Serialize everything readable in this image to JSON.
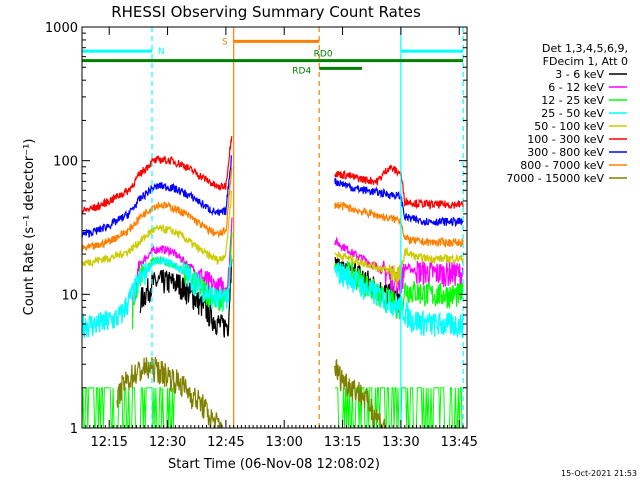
{
  "chart_data": {
    "type": "line",
    "title": "RHESSI Observing Summary Count Rates",
    "xlabel": "Start Time (06-Nov-08 12:08:02)",
    "ylabel": "Count Rate (s⁻¹ detector⁻¹)",
    "y_scale": "log",
    "ylim": [
      1,
      1000
    ],
    "xlim_minutes": [
      0,
      99
    ],
    "x_ticks": [
      {
        "label": "12:15",
        "t": 7
      },
      {
        "label": "12:30",
        "t": 22
      },
      {
        "label": "12:45",
        "t": 37
      },
      {
        "label": "13:00",
        "t": 52
      },
      {
        "label": "13:15",
        "t": 67
      },
      {
        "label": "13:30",
        "t": 82
      },
      {
        "label": "13:45",
        "t": 97
      }
    ],
    "y_ticks": [
      {
        "label": "1",
        "v": 1
      },
      {
        "label": "10",
        "v": 10
      },
      {
        "label": "100",
        "v": 100
      },
      {
        "label": "1000",
        "v": 1000
      }
    ],
    "legend": {
      "placement": "right",
      "header": [
        "Det 1,3,4,5,6,9,",
        "FDecim 1, Att 0"
      ],
      "entries": [
        {
          "label": "3 - 6 keV",
          "color": "#000000"
        },
        {
          "label": "6 - 12 keV",
          "color": "#ff00ff"
        },
        {
          "label": "12 - 25 keV",
          "color": "#00ff00"
        },
        {
          "label": "25 - 50 keV",
          "color": "#00ffff"
        },
        {
          "label": "50 - 100 keV",
          "color": "#cccc00"
        },
        {
          "label": "100 - 300 keV",
          "color": "#ff0000"
        },
        {
          "label": "300 - 800 keV",
          "color": "#0000ff"
        },
        {
          "label": "800 - 7000 keV",
          "color": "#ff8000"
        },
        {
          "label": "7000 - 15000 keV",
          "color": "#808000"
        }
      ]
    },
    "flags": [
      {
        "label": "N",
        "color": "#00ffff",
        "start": 0,
        "end": 18,
        "level": 660
      },
      {
        "label": "N",
        "color": "#00ffff",
        "start": 82,
        "end": 98,
        "level": 660
      },
      {
        "label": "S",
        "color": "#ff8000",
        "start": 39,
        "end": 61,
        "level": 780
      },
      {
        "label": "RD0",
        "color": "#008000",
        "start": 0,
        "end": 98,
        "level": 560
      },
      {
        "label": "RD4",
        "color": "#008000",
        "start": 61,
        "end": 72,
        "level": 490
      }
    ],
    "event_lines": [
      {
        "color": "#00ffff",
        "t": 18,
        "style": "dashed"
      },
      {
        "color": "#00ffff",
        "t": 82,
        "style": "solid"
      },
      {
        "color": "#00ffff",
        "t": 98,
        "style": "dashed"
      },
      {
        "color": "#ff8000",
        "t": 39,
        "style": "solid"
      },
      {
        "color": "#ff8000",
        "t": 61,
        "style": "dashed"
      }
    ],
    "gap_minutes": [
      39,
      65
    ],
    "series": [
      {
        "name": "3 - 6 keV",
        "color": "#000000",
        "t": [
          15,
          18,
          20,
          22,
          25,
          28,
          31,
          34,
          36,
          37.6,
          38.6
        ],
        "v": [
          9,
          12,
          12.5,
          12.5,
          12,
          10,
          8.2,
          6.5,
          5.8,
          6,
          22
        ],
        "t2": [
          65,
          68,
          70,
          73,
          76,
          79,
          82
        ],
        "v2": [
          18,
          16,
          15,
          13,
          11,
          10,
          9
        ]
      },
      {
        "name": "6 - 12 keV",
        "color": "#ff00ff",
        "t": [
          13,
          15,
          18,
          20,
          23,
          26,
          29,
          32,
          35,
          37.6,
          38.6
        ],
        "v": [
          8.5,
          17,
          21,
          22,
          21,
          18,
          15,
          12.5,
          11,
          12,
          40
        ],
        "t2": [
          65,
          68,
          70,
          73,
          76,
          79,
          82,
          83,
          86,
          90,
          94,
          98
        ],
        "v2": [
          25,
          22,
          20,
          18,
          16,
          14,
          12,
          16,
          15,
          14.5,
          14.5,
          14.5
        ]
      },
      {
        "name": "12 - 25 keV",
        "color": "#00ff00",
        "t": [
          13,
          15,
          18,
          20,
          23,
          26,
          29,
          32,
          35,
          37.6,
          38.6
        ],
        "v": [
          7,
          14,
          17.5,
          18,
          17,
          15,
          12.5,
          10.5,
          9,
          9.5,
          30
        ],
        "t2": [
          65,
          68,
          70,
          73,
          76,
          79,
          82,
          83,
          86,
          90,
          94,
          98
        ],
        "v2": [
          16,
          15,
          14,
          12,
          10,
          9,
          8,
          11,
          10.5,
          10,
          10,
          10
        ]
      },
      {
        "name": "25 - 50 keV",
        "color": "#00ffff",
        "t": [
          0,
          4,
          8,
          10,
          12,
          15,
          18,
          20,
          23,
          26,
          29,
          32,
          35,
          37.6,
          38.6
        ],
        "v": [
          6,
          6,
          6.5,
          7,
          9,
          13,
          17,
          18,
          17,
          15,
          12.5,
          10.5,
          9,
          10,
          20
        ],
        "t2": [
          65,
          68,
          70,
          73,
          76,
          79,
          82,
          85,
          90,
          94,
          98
        ],
        "v2": [
          15,
          14,
          13,
          11,
          10,
          9,
          8,
          6.5,
          6,
          6,
          6
        ]
      },
      {
        "name": "50 - 100 keV",
        "color": "#cccc00",
        "t": [
          0,
          4,
          8,
          12,
          15,
          18,
          20,
          23,
          26,
          29,
          32,
          35,
          37,
          38.6
        ],
        "v": [
          17,
          18,
          19,
          21,
          25,
          30,
          31,
          30,
          27,
          23,
          20,
          18,
          20,
          65
        ],
        "t2": [
          65,
          68,
          70,
          73,
          76,
          79,
          82,
          83,
          86,
          90,
          94,
          98
        ],
        "v2": [
          20,
          19,
          18,
          17,
          16,
          15,
          14,
          21,
          19,
          18.5,
          18.5,
          18.5
        ]
      },
      {
        "name": "100 - 300 keV",
        "color": "#ff0000",
        "t": [
          0,
          4,
          8,
          12,
          15,
          18,
          20,
          23,
          26,
          29,
          32,
          35,
          37,
          38.6
        ],
        "v": [
          42,
          45,
          52,
          60,
          80,
          98,
          102,
          100,
          93,
          82,
          72,
          63,
          65,
          170
        ],
        "t2": [
          65,
          68,
          70,
          73,
          76,
          79,
          82,
          83,
          86,
          90,
          94,
          98
        ],
        "v2": [
          80,
          78,
          75,
          72,
          70,
          90,
          80,
          50,
          48,
          47,
          47,
          47
        ]
      },
      {
        "name": "300 - 800 keV",
        "color": "#0000ff",
        "t": [
          0,
          4,
          8,
          12,
          15,
          18,
          20,
          23,
          26,
          29,
          32,
          35,
          37,
          38.6
        ],
        "v": [
          28,
          30,
          34,
          40,
          52,
          62,
          65,
          63,
          58,
          52,
          45,
          40,
          42,
          120
        ],
        "t2": [
          65,
          68,
          70,
          73,
          76,
          79,
          82,
          83,
          86,
          90,
          94,
          98
        ],
        "v2": [
          70,
          66,
          62,
          60,
          58,
          56,
          54,
          38,
          36,
          35,
          35,
          35
        ]
      },
      {
        "name": "800 - 7000 keV",
        "color": "#ff8000",
        "t": [
          0,
          4,
          8,
          12,
          15,
          18,
          20,
          23,
          26,
          29,
          32,
          35,
          37,
          38.6
        ],
        "v": [
          22,
          23,
          26,
          30,
          38,
          45,
          47,
          45,
          41,
          36,
          31,
          28,
          30,
          90
        ],
        "t2": [
          65,
          68,
          70,
          73,
          76,
          79,
          82,
          83,
          86,
          90,
          94,
          98
        ],
        "v2": [
          47,
          45,
          43,
          41,
          39,
          37,
          36,
          26,
          25,
          24.5,
          24.5,
          24.5
        ]
      },
      {
        "name": "7000 - 15000 keV",
        "color": "#808000",
        "t": [
          9,
          10,
          13,
          16,
          19,
          22,
          25,
          28,
          31,
          33,
          36
        ],
        "v": [
          1.5,
          2,
          2.5,
          2.8,
          2.8,
          2.5,
          2.2,
          1.8,
          1.5,
          1.2,
          1
        ],
        "t2": [
          65,
          66,
          68,
          70,
          72,
          74,
          76,
          78
        ],
        "v2": [
          3,
          2.5,
          2.2,
          2,
          1.8,
          1.5,
          1.2,
          1
        ]
      }
    ],
    "noise_band": {
      "color": "#00ff00",
      "segments": [
        [
          0,
          24
        ],
        [
          65,
          98
        ]
      ],
      "vmin": 1,
      "vmax": 2
    }
  },
  "footer": {
    "timestamp": "15-Oct-2021 21:53"
  }
}
